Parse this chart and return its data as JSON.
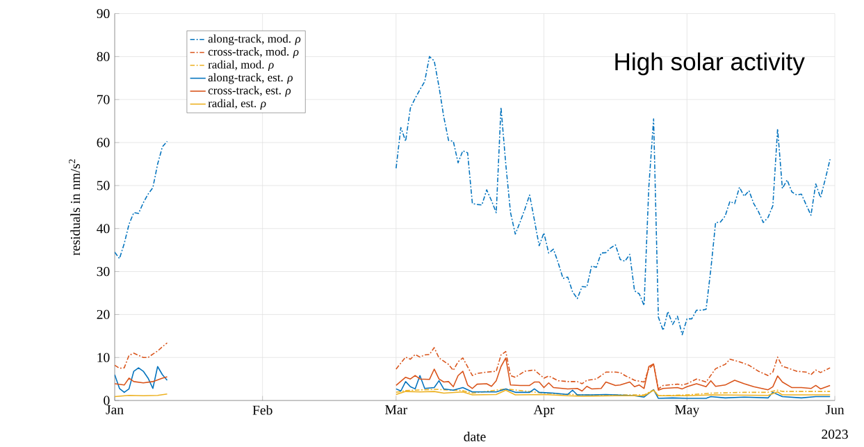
{
  "chart_data": {
    "type": "line",
    "xlabel": "date",
    "ylabel": "residuals in nm/s$^{2}$",
    "annotations": [
      "High solar activity",
      "2023"
    ],
    "xlim": [
      "2023-01-01",
      "2023-06-01"
    ],
    "xticks": [
      {
        "value": "2023-01-01",
        "label": "Jan"
      },
      {
        "value": "2023-02-01",
        "label": "Feb"
      },
      {
        "value": "2023-03-01",
        "label": "Mar"
      },
      {
        "value": "2023-04-01",
        "label": "Apr"
      },
      {
        "value": "2023-05-01",
        "label": "May"
      },
      {
        "value": "2023-06-01",
        "label": "Jun"
      }
    ],
    "ylim": [
      0,
      90
    ],
    "yticks": [
      0,
      10,
      20,
      30,
      40,
      50,
      60,
      70,
      80,
      90
    ],
    "grid": true,
    "legend": "top left",
    "x": [
      "2023-01-01",
      "2023-01-02",
      "2023-01-03",
      "2023-01-04",
      "2023-01-05",
      "2023-01-06",
      "2023-01-07",
      "2023-01-08",
      "2023-01-09",
      "2023-01-10",
      "2023-01-11",
      "2023-01-12",
      "2023-02-01",
      "2023-03-01",
      "2023-03-02",
      "2023-03-03",
      "2023-03-04",
      "2023-03-05",
      "2023-03-06",
      "2023-03-07",
      "2023-03-08",
      "2023-03-09",
      "2023-03-10",
      "2023-03-11",
      "2023-03-12",
      "2023-03-13",
      "2023-03-14",
      "2023-03-15",
      "2023-03-16",
      "2023-03-17",
      "2023-03-18",
      "2023-03-19",
      "2023-03-20",
      "2023-03-21",
      "2023-03-22",
      "2023-03-23",
      "2023-03-24",
      "2023-03-25",
      "2023-03-26",
      "2023-03-27",
      "2023-03-28",
      "2023-03-29",
      "2023-03-30",
      "2023-03-31",
      "2023-04-01",
      "2023-04-02",
      "2023-04-03",
      "2023-04-04",
      "2023-04-05",
      "2023-04-06",
      "2023-04-07",
      "2023-04-08",
      "2023-04-09",
      "2023-04-10",
      "2023-04-11",
      "2023-04-12",
      "2023-04-13",
      "2023-04-14",
      "2023-04-15",
      "2023-04-16",
      "2023-04-17",
      "2023-04-18",
      "2023-04-19",
      "2023-04-20",
      "2023-04-21",
      "2023-04-22",
      "2023-04-23",
      "2023-04-24",
      "2023-04-25",
      "2023-04-26",
      "2023-04-27",
      "2023-04-28",
      "2023-04-29",
      "2023-04-30",
      "2023-05-01",
      "2023-05-02",
      "2023-05-03",
      "2023-05-04",
      "2023-05-05",
      "2023-05-06",
      "2023-05-07",
      "2023-05-08",
      "2023-05-09",
      "2023-05-10",
      "2023-05-11",
      "2023-05-12",
      "2023-05-13",
      "2023-05-14",
      "2023-05-15",
      "2023-05-16",
      "2023-05-17",
      "2023-05-18",
      "2023-05-19",
      "2023-05-20",
      "2023-05-21",
      "2023-05-22",
      "2023-05-23",
      "2023-05-24",
      "2023-05-25",
      "2023-05-26",
      "2023-05-27",
      "2023-05-28",
      "2023-05-29",
      "2023-05-30",
      "2023-05-31"
    ],
    "series": [
      {
        "name": "along-track, mod. *ρ*",
        "color": "#0072bd",
        "line_style": "dashed",
        "values": [
          34.5,
          33,
          36.5,
          41,
          43.7,
          43.5,
          46,
          48,
          49.5,
          55,
          59,
          60.3,
          null,
          54,
          63.5,
          60.3,
          68,
          70.3,
          72.3,
          74.2,
          80,
          79,
          73,
          66,
          60.5,
          60.3,
          55.3,
          58.1,
          57.6,
          45.8,
          45.6,
          45.5,
          49,
          46.5,
          43.7,
          68.2,
          55,
          43.7,
          38.7,
          41.5,
          44.5,
          47.8,
          42,
          36,
          39,
          34.3,
          35.2,
          32,
          28.4,
          28.7,
          25.3,
          23.7,
          26.5,
          26.4,
          31.3,
          31,
          34.3,
          34.4,
          35.5,
          36.2,
          32.8,
          32.4,
          34,
          25.5,
          24.8,
          22.1,
          49.7,
          65.5,
          19.4,
          16.3,
          20.7,
          17.7,
          19.6,
          15.3,
          19,
          19,
          21,
          21,
          21.2,
          30.5,
          41.4,
          41.5,
          42.9,
          46.3,
          45.8,
          49.6,
          47.5,
          48.8,
          45.8,
          43.9,
          41.4,
          42.6,
          45.3,
          63.2,
          49.3,
          51.3,
          48.5,
          47.8,
          48,
          45.5,
          43.1,
          50.4,
          47.2,
          51.5,
          56.1
        ]
      },
      {
        "name": "cross-track, mod. *ρ*",
        "color": "#d95319",
        "line_style": "dashed",
        "x": [
          "2023-01-01",
          "2023-01-02",
          "2023-01-03",
          "2023-01-04",
          "2023-01-05",
          "2023-01-06",
          "2023-01-07",
          "2023-01-08",
          "2023-01-09",
          "2023-01-10",
          "2023-01-11",
          "2023-01-12",
          "2023-02-01",
          "2023-03-01",
          "2023-03-03",
          "2023-03-04",
          "2023-03-05",
          "2023-03-06",
          "2023-03-07",
          "2023-03-08",
          "2023-03-09",
          "2023-03-10",
          "2023-03-12",
          "2023-03-13",
          "2023-03-14",
          "2023-03-15",
          "2023-03-17",
          "2023-03-18",
          "2023-03-20",
          "2023-03-22",
          "2023-03-23",
          "2023-03-24",
          "2023-03-25",
          "2023-03-26",
          "2023-03-28",
          "2023-03-30",
          "2023-04-01",
          "2023-04-02",
          "2023-04-04",
          "2023-04-06",
          "2023-04-08",
          "2023-04-09",
          "2023-04-10",
          "2023-04-12",
          "2023-04-14",
          "2023-04-16",
          "2023-04-17",
          "2023-04-18",
          "2023-04-20",
          "2023-04-22",
          "2023-04-23",
          "2023-04-24",
          "2023-04-25",
          "2023-04-26",
          "2023-04-29",
          "2023-04-30",
          "2023-05-01",
          "2023-05-03",
          "2023-05-05",
          "2023-05-07",
          "2023-05-09",
          "2023-05-10",
          "2023-05-12",
          "2023-05-14",
          "2023-05-16",
          "2023-05-18",
          "2023-05-19",
          "2023-05-20",
          "2023-05-21",
          "2023-05-22",
          "2023-05-24",
          "2023-05-26",
          "2023-05-27",
          "2023-05-28",
          "2023-05-29",
          "2023-05-31"
        ],
        "values": [
          8.2,
          7.5,
          7.6,
          10.5,
          11,
          10.5,
          10,
          10,
          10.8,
          11.5,
          12.5,
          13.4,
          null,
          7.3,
          10.1,
          9.6,
          10.7,
          10.1,
          10.6,
          10.7,
          12.3,
          9.9,
          8.4,
          7,
          9,
          9.9,
          5.8,
          6.3,
          6.6,
          6.8,
          10.6,
          11.4,
          5.8,
          5.4,
          6.8,
          7.1,
          5.2,
          5.7,
          4.6,
          4.4,
          4.4,
          3.9,
          4.7,
          5,
          6.6,
          6.6,
          6.5,
          5.8,
          4.7,
          4.3,
          7.4,
          8.4,
          2.7,
          3.5,
          3.8,
          3.6,
          3.9,
          5,
          4.3,
          7.4,
          8.4,
          9.6,
          9,
          8.2,
          6.8,
          5.8,
          6.6,
          10.1,
          7.9,
          7.6,
          6.8,
          6.6,
          6,
          7.1,
          6.5,
          7.6
        ]
      },
      {
        "name": "radial, mod. *ρ*",
        "color": "#edb120",
        "line_style": "dashed",
        "x": [
          "2023-03-01",
          "2023-03-03",
          "2023-03-09",
          "2023-03-15",
          "2023-03-17",
          "2023-03-24",
          "2023-04-01",
          "2023-04-09",
          "2023-04-22",
          "2023-04-24",
          "2023-04-25",
          "2023-05-01",
          "2023-05-06",
          "2023-05-13",
          "2023-05-18",
          "2023-05-20",
          "2023-05-21",
          "2023-05-31"
        ],
        "values": [
          1.9,
          2.3,
          2.6,
          2.3,
          1.7,
          2.7,
          1.7,
          1.3,
          1.3,
          2.5,
          1.1,
          1.3,
          1.7,
          1.9,
          1.9,
          2.4,
          2.1,
          2.1
        ]
      },
      {
        "name": "along-track, est. *ρ*",
        "color": "#0072bd",
        "line_style": "solid",
        "x": [
          "2023-01-01",
          "2023-01-02",
          "2023-01-03",
          "2023-01-04",
          "2023-01-05",
          "2023-01-06",
          "2023-01-07",
          "2023-01-08",
          "2023-01-09",
          "2023-01-10",
          "2023-01-11",
          "2023-01-12",
          "2023-02-01",
          "2023-03-01",
          "2023-03-02",
          "2023-03-03",
          "2023-03-04",
          "2023-03-05",
          "2023-03-06",
          "2023-03-07",
          "2023-03-09",
          "2023-03-10",
          "2023-03-11",
          "2023-03-13",
          "2023-03-15",
          "2023-03-17",
          "2023-03-22",
          "2023-03-24",
          "2023-03-26",
          "2023-03-29",
          "2023-03-30",
          "2023-03-31",
          "2023-04-03",
          "2023-04-06",
          "2023-04-07",
          "2023-04-08",
          "2023-04-11",
          "2023-04-14",
          "2023-04-16",
          "2023-04-20",
          "2023-04-22",
          "2023-04-24",
          "2023-04-25",
          "2023-04-28",
          "2023-05-01",
          "2023-05-05",
          "2023-05-06",
          "2023-05-09",
          "2023-05-13",
          "2023-05-18",
          "2023-05-19",
          "2023-05-21",
          "2023-05-25",
          "2023-05-28",
          "2023-05-31"
        ],
        "values": [
          6,
          2.8,
          1.9,
          2.7,
          6.8,
          7.6,
          6.8,
          5.2,
          2.8,
          7.9,
          6,
          4.7,
          null,
          2.7,
          2.2,
          4.4,
          3.2,
          2.7,
          5.8,
          2.8,
          3,
          4.6,
          2.7,
          2.4,
          3,
          2,
          2,
          2.7,
          1.9,
          1.9,
          2.7,
          1.9,
          1.7,
          1.4,
          2.4,
          1.3,
          1.3,
          1.4,
          1.3,
          1.1,
          0.8,
          2.5,
          0.5,
          0.6,
          0.5,
          0.5,
          0.9,
          0.6,
          0.8,
          0.6,
          1.9,
          0.9,
          0.6,
          0.9,
          0.9
        ]
      },
      {
        "name": "cross-track, est. *ρ*",
        "color": "#d95319",
        "line_style": "solid",
        "x": [
          "2023-01-01",
          "2023-01-03",
          "2023-01-04",
          "2023-01-05",
          "2023-01-07",
          "2023-01-09",
          "2023-01-11",
          "2023-01-12",
          "2023-02-01",
          "2023-03-01",
          "2023-03-03",
          "2023-03-04",
          "2023-03-05",
          "2023-03-06",
          "2023-03-08",
          "2023-03-09",
          "2023-03-10",
          "2023-03-11",
          "2023-03-12",
          "2023-03-13",
          "2023-03-14",
          "2023-03-15",
          "2023-03-16",
          "2023-03-17",
          "2023-03-18",
          "2023-03-20",
          "2023-03-21",
          "2023-03-22",
          "2023-03-23",
          "2023-03-24",
          "2023-03-25",
          "2023-03-27",
          "2023-03-29",
          "2023-03-30",
          "2023-03-31",
          "2023-04-01",
          "2023-04-02",
          "2023-04-03",
          "2023-04-06",
          "2023-04-08",
          "2023-04-09",
          "2023-04-10",
          "2023-04-11",
          "2023-04-13",
          "2023-04-14",
          "2023-04-16",
          "2023-04-17",
          "2023-04-19",
          "2023-04-20",
          "2023-04-21",
          "2023-04-22",
          "2023-04-23",
          "2023-04-24",
          "2023-04-25",
          "2023-04-26",
          "2023-04-29",
          "2023-04-30",
          "2023-05-01",
          "2023-05-03",
          "2023-05-05",
          "2023-05-06",
          "2023-05-07",
          "2023-05-09",
          "2023-05-11",
          "2023-05-13",
          "2023-05-15",
          "2023-05-18",
          "2023-05-19",
          "2023-05-20",
          "2023-05-21",
          "2023-05-23",
          "2023-05-25",
          "2023-05-27",
          "2023-05-28",
          "2023-05-29",
          "2023-05-31"
        ],
        "values": [
          3.9,
          3.6,
          5.2,
          4.4,
          4.1,
          4.4,
          5.2,
          5.5,
          null,
          3.5,
          5.4,
          5,
          5.8,
          5,
          4.9,
          7.3,
          5,
          4.3,
          4.4,
          3.2,
          5.8,
          6.8,
          3.6,
          2.8,
          3.8,
          3.9,
          3.3,
          4.6,
          7.9,
          9.9,
          3.6,
          3.5,
          3.5,
          4.3,
          4.3,
          3,
          4.1,
          3,
          2.7,
          2.8,
          2.2,
          3.3,
          2.7,
          2.8,
          4.3,
          3.5,
          3.6,
          4.3,
          3.2,
          3.6,
          2.8,
          7.9,
          8.5,
          2.4,
          2.8,
          3,
          2.7,
          3.2,
          3.9,
          3.2,
          4.6,
          3.3,
          3.6,
          4.7,
          3.9,
          3.2,
          2.5,
          3.2,
          5.7,
          4.3,
          3,
          3,
          2.8,
          3.5,
          2.7,
          3.5
        ]
      },
      {
        "name": "radial, est. *ρ*",
        "color": "#edb120",
        "line_style": "solid",
        "x": [
          "2023-01-01",
          "2023-01-04",
          "2023-01-07",
          "2023-01-10",
          "2023-01-12",
          "2023-02-01",
          "2023-03-01",
          "2023-03-03",
          "2023-03-06",
          "2023-03-09",
          "2023-03-11",
          "2023-03-15",
          "2023-03-17",
          "2023-03-22",
          "2023-03-24",
          "2023-03-26",
          "2023-04-01",
          "2023-04-06",
          "2023-04-09",
          "2023-04-16",
          "2023-04-22",
          "2023-04-24",
          "2023-04-25",
          "2023-05-01",
          "2023-05-06",
          "2023-05-18",
          "2023-05-20",
          "2023-05-21",
          "2023-05-31"
        ],
        "values": [
          0.9,
          1.2,
          1.1,
          1.2,
          1.5,
          null,
          1.4,
          2.1,
          2,
          2.1,
          1.7,
          2,
          1.3,
          1.4,
          2.4,
          1.3,
          1.4,
          1.1,
          1,
          1.1,
          1.1,
          2.4,
          1.1,
          1.1,
          1.3,
          1.2,
          2,
          1.3,
          1.3
        ]
      }
    ]
  }
}
